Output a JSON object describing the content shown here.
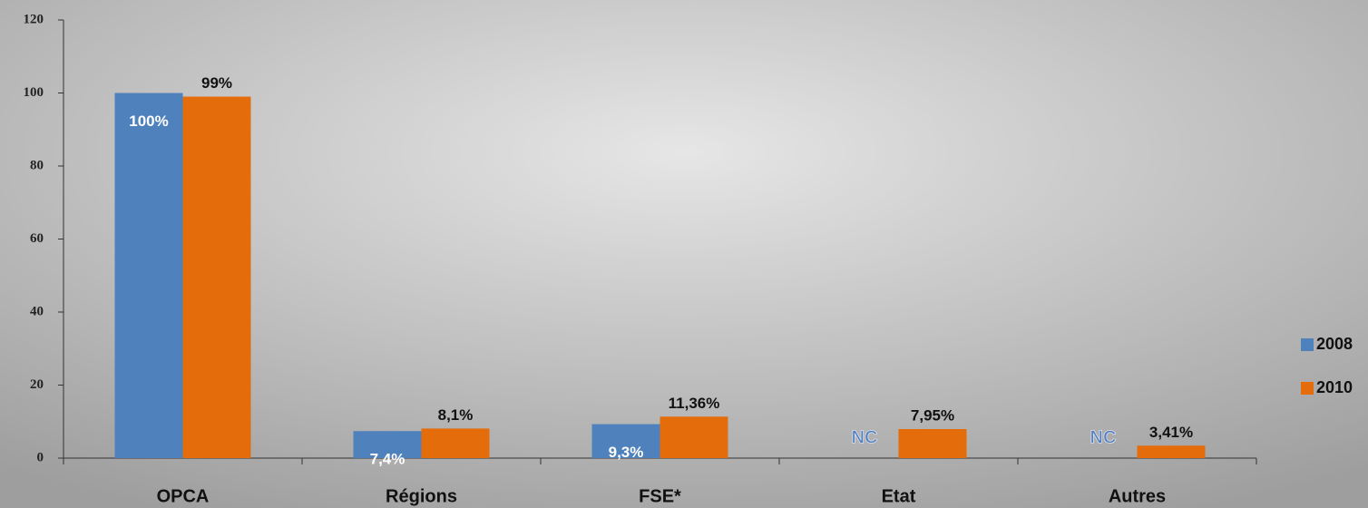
{
  "chart_data": {
    "type": "bar",
    "categories": [
      "OPCA",
      "Régions",
      "FSE*",
      "Etat",
      "Autres"
    ],
    "series": [
      {
        "name": "2008",
        "color": "#4f81bd",
        "values": [
          100,
          7.4,
          9.3,
          null,
          null
        ],
        "value_labels": [
          "100%",
          "7,4%",
          "9,3%",
          "NC",
          "NC"
        ]
      },
      {
        "name": "2010",
        "color": "#e46c0a",
        "values": [
          99,
          8.1,
          11.36,
          7.95,
          3.41
        ],
        "value_labels": [
          "99%",
          "8,1%",
          "11,36%",
          "7,95%",
          "3,41%"
        ]
      }
    ],
    "ylim": [
      0,
      120
    ],
    "yticks": [
      0,
      20,
      40,
      60,
      80,
      100,
      120
    ],
    "grid": false,
    "legend": "right"
  }
}
